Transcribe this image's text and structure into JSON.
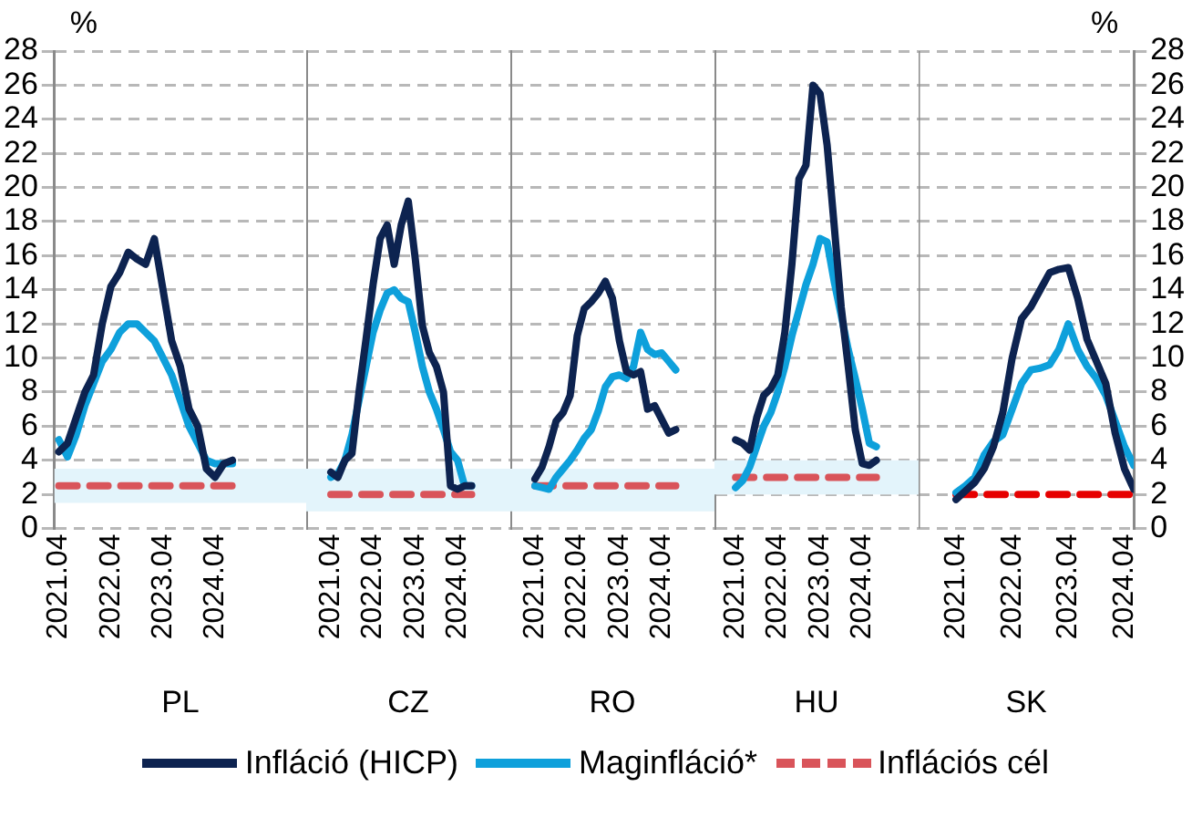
{
  "chart_data": [
    {
      "type": "line",
      "ylabel": "%",
      "xlabel": "PL",
      "legend": "bottom",
      "marker": "none",
      "grid": "y",
      "xlim": [
        "2021-03",
        "2026-01"
      ],
      "ylim": [
        0,
        28
      ],
      "yticks": [
        0,
        2,
        4,
        6,
        8,
        10,
        12,
        14,
        16,
        18,
        20,
        22,
        24,
        26,
        28
      ],
      "xticks": [
        {
          "value": "2021-04",
          "label": "2021.04"
        },
        {
          "value": "2022-04",
          "label": "2022.04"
        },
        {
          "value": "2023-04",
          "label": "2023.04"
        },
        {
          "value": "2024-04",
          "label": "2024.04"
        }
      ],
      "x": [
        "2021-04",
        "2021-06",
        "2021-08",
        "2021-10",
        "2021-12",
        "2022-02",
        "2022-04",
        "2022-06",
        "2022-08",
        "2022-10",
        "2022-12",
        "2023-02",
        "2023-04",
        "2023-06",
        "2023-08",
        "2023-10",
        "2023-12",
        "2024-02",
        "2024-04",
        "2024-06",
        "2024-08"
      ],
      "bands": [
        {
          "axis": "y",
          "from": 1.5,
          "to": 3.5,
          "color": "#e3f4fb"
        }
      ],
      "series": [
        {
          "name": "Infláció (HICP)",
          "color": "#0d2350",
          "values": [
            4.5,
            5.0,
            6.5,
            8.0,
            9.0,
            12.0,
            14.2,
            15.0,
            16.2,
            15.8,
            15.5,
            17.0,
            14.0,
            11.0,
            9.5,
            7.0,
            6.0,
            3.5,
            3.0,
            3.8,
            4.0
          ]
        },
        {
          "name": "Maginfláció*",
          "color": "#0ea0db",
          "values": [
            5.2,
            4.2,
            5.5,
            7.2,
            8.5,
            9.8,
            10.5,
            11.5,
            12.0,
            12.0,
            11.5,
            11.0,
            10.0,
            9.0,
            7.5,
            6.0,
            5.0,
            4.0,
            3.8,
            3.8,
            3.8
          ]
        },
        {
          "name": "Inflációs cél",
          "color": "#d9545a",
          "line_style": "dashed",
          "values": [
            2.5,
            2.5,
            2.5,
            2.5,
            2.5,
            2.5,
            2.5,
            2.5,
            2.5,
            2.5,
            2.5,
            2.5,
            2.5,
            2.5,
            2.5,
            2.5,
            2.5,
            2.5,
            2.5,
            2.5,
            2.5
          ]
        }
      ]
    },
    {
      "type": "line",
      "xlabel": "CZ",
      "marker": "none",
      "grid": "y",
      "tick_labels": "x",
      "xlim": [
        "2020-09",
        "2025-07"
      ],
      "ylim": [
        0,
        28
      ],
      "yticks": [
        0,
        2,
        4,
        6,
        8,
        10,
        12,
        14,
        16,
        18,
        20,
        22,
        24,
        26,
        28
      ],
      "xticks": [
        {
          "value": "2021-04",
          "label": "2021.04"
        },
        {
          "value": "2022-04",
          "label": "2022.04"
        },
        {
          "value": "2023-04",
          "label": "2023.04"
        },
        {
          "value": "2024-04",
          "label": "2024.04"
        }
      ],
      "x": [
        "2021-04",
        "2021-06",
        "2021-08",
        "2021-10",
        "2021-12",
        "2022-02",
        "2022-04",
        "2022-06",
        "2022-08",
        "2022-10",
        "2022-12",
        "2023-02",
        "2023-04",
        "2023-06",
        "2023-08",
        "2023-10",
        "2023-12",
        "2024-02",
        "2024-04",
        "2024-06",
        "2024-08"
      ],
      "bands": [
        {
          "axis": "y",
          "from": 1,
          "to": 3.5,
          "color": "#e3f4fb"
        }
      ],
      "series": [
        {
          "color": "#0d2350",
          "values": [
            3.3,
            3.0,
            4.0,
            4.4,
            8.0,
            11.1,
            14.3,
            17.0,
            17.8,
            15.5,
            17.8,
            19.2,
            15.8,
            11.9,
            10.3,
            9.5,
            8.0,
            2.5,
            2.3,
            2.5,
            2.5
          ]
        },
        {
          "color": "#0ea0db",
          "values": [
            3.0,
            3.2,
            4.0,
            5.5,
            7.5,
            9.5,
            11.5,
            12.8,
            13.8,
            14.0,
            13.5,
            13.3,
            11.5,
            9.5,
            8.0,
            7.0,
            5.8,
            4.5,
            4.0,
            2.5,
            2.5
          ]
        },
        {
          "color": "#d9545a",
          "line_style": "dashed",
          "values": [
            2,
            2,
            2,
            2,
            2,
            2,
            2,
            2,
            2,
            2,
            2,
            2,
            2,
            2,
            2,
            2,
            2,
            2,
            2,
            2,
            2
          ]
        }
      ]
    },
    {
      "type": "line",
      "xlabel": "RO",
      "marker": "none",
      "grid": "y",
      "tick_labels": "x",
      "xlim": [
        "2020-09",
        "2025-07"
      ],
      "ylim": [
        0,
        28
      ],
      "yticks": [
        0,
        2,
        4,
        6,
        8,
        10,
        12,
        14,
        16,
        18,
        20,
        22,
        24,
        26,
        28
      ],
      "xticks": [
        {
          "value": "2021-04",
          "label": "2021.04"
        },
        {
          "value": "2022-04",
          "label": "2022.04"
        },
        {
          "value": "2023-04",
          "label": "2023.04"
        },
        {
          "value": "2024-04",
          "label": "2024.04"
        }
      ],
      "x": [
        "2021-04",
        "2021-06",
        "2021-08",
        "2021-10",
        "2021-12",
        "2022-02",
        "2022-04",
        "2022-06",
        "2022-08",
        "2022-10",
        "2022-12",
        "2023-02",
        "2023-04",
        "2023-06",
        "2023-08",
        "2023-10",
        "2023-12",
        "2024-02",
        "2024-04",
        "2024-06",
        "2024-08"
      ],
      "bands": [
        {
          "axis": "y",
          "from": 1,
          "to": 3.5,
          "color": "#e3f4fb"
        }
      ],
      "series": [
        {
          "color": "#0d2350",
          "values": [
            2.9,
            3.6,
            4.8,
            6.3,
            6.8,
            7.8,
            11.3,
            12.9,
            13.3,
            13.8,
            14.5,
            13.5,
            11.0,
            9.2,
            9.0,
            9.2,
            7.0,
            7.2,
            6.4,
            5.6,
            5.8
          ]
        },
        {
          "color": "#0ea0db",
          "values": [
            2.5,
            2.4,
            2.3,
            3.0,
            3.5,
            4.0,
            4.6,
            5.3,
            5.8,
            6.9,
            8.3,
            8.9,
            9.0,
            8.8,
            9.5,
            11.5,
            10.5,
            10.2,
            10.3,
            9.8,
            9.3
          ]
        },
        {
          "color": "#d9545a",
          "line_style": "dashed",
          "values": [
            2.5,
            2.5,
            2.5,
            2.5,
            2.5,
            2.5,
            2.5,
            2.5,
            2.5,
            2.5,
            2.5,
            2.5,
            2.5,
            2.5,
            2.5,
            2.5,
            2.5,
            2.5,
            2.5,
            2.5,
            2.5
          ]
        }
      ]
    },
    {
      "type": "line",
      "xlabel": "HU",
      "marker": "none",
      "grid": "y",
      "tick_labels": "x",
      "xlim": [
        "2020-10",
        "2025-08"
      ],
      "ylim": [
        0,
        28
      ],
      "yticks": [
        0,
        2,
        4,
        6,
        8,
        10,
        12,
        14,
        16,
        18,
        20,
        22,
        24,
        26,
        28
      ],
      "xticks": [
        {
          "value": "2021-04",
          "label": "2021.04"
        },
        {
          "value": "2022-04",
          "label": "2022.04"
        },
        {
          "value": "2023-04",
          "label": "2023.04"
        },
        {
          "value": "2024-04",
          "label": "2024.04"
        }
      ],
      "x": [
        "2021-04",
        "2021-06",
        "2021-08",
        "2021-10",
        "2021-12",
        "2022-02",
        "2022-04",
        "2022-06",
        "2022-08",
        "2022-10",
        "2022-12",
        "2023-02",
        "2023-04",
        "2023-06",
        "2023-08",
        "2023-10",
        "2023-12",
        "2024-02",
        "2024-04",
        "2024-06",
        "2024-08"
      ],
      "bands": [
        {
          "axis": "y",
          "from": 2,
          "to": 4,
          "color": "#e3f4fb"
        }
      ],
      "series": [
        {
          "color": "#0d2350",
          "values": [
            5.2,
            5.0,
            4.6,
            6.5,
            7.8,
            8.2,
            9.0,
            11.5,
            15.5,
            20.5,
            21.3,
            26.0,
            25.5,
            22.5,
            17.8,
            13.0,
            9.5,
            5.8,
            3.8,
            3.7,
            4.0
          ]
        },
        {
          "color": "#0ea0db",
          "values": [
            2.4,
            2.8,
            3.6,
            4.8,
            6.0,
            6.8,
            8.0,
            9.5,
            11.3,
            12.8,
            14.3,
            15.5,
            17.0,
            16.8,
            14.5,
            12.5,
            10.5,
            8.8,
            7.0,
            5.0,
            4.8
          ]
        },
        {
          "color": "#d9545a",
          "line_style": "dashed",
          "values": [
            3,
            3,
            3,
            3,
            3,
            3,
            3,
            3,
            3,
            3,
            3,
            3,
            3,
            3,
            3,
            3,
            3,
            3,
            3,
            3,
            3
          ]
        }
      ]
    },
    {
      "type": "line",
      "xlabel": "SK",
      "y2label": "%",
      "marker": "none",
      "grid": "y",
      "xlim": [
        "2020-08",
        "2024-06"
      ],
      "y2lim": [
        0,
        28
      ],
      "y2ticks": [
        0,
        2,
        4,
        6,
        8,
        10,
        12,
        14,
        16,
        18,
        20,
        22,
        24,
        26,
        28
      ],
      "xticks": [
        {
          "value": "2021-04",
          "label": "2021.04"
        },
        {
          "value": "2022-04",
          "label": "2022.04"
        },
        {
          "value": "2023-04",
          "label": "2023.04"
        },
        {
          "value": "2024-04",
          "label": "2024.04"
        }
      ],
      "x": [
        "2021-04",
        "2021-06",
        "2021-08",
        "2021-10",
        "2021-12",
        "2022-02",
        "2022-04",
        "2022-06",
        "2022-08",
        "2022-10",
        "2022-12",
        "2023-02",
        "2023-04",
        "2023-06",
        "2023-08",
        "2023-10",
        "2023-12",
        "2024-02",
        "2024-04",
        "2024-06"
      ],
      "series": [
        {
          "axis": "y2",
          "color": "#0d2350",
          "values": [
            1.7,
            2.2,
            2.7,
            3.5,
            4.8,
            6.8,
            10.0,
            12.3,
            13.0,
            14.0,
            15.0,
            15.2,
            15.3,
            13.5,
            11.1,
            9.8,
            8.5,
            5.6,
            3.5,
            2.3
          ]
        },
        {
          "axis": "y2",
          "color": "#0ea0db",
          "values": [
            2.1,
            2.5,
            3.0,
            4.3,
            5.1,
            5.5,
            7.0,
            8.5,
            9.3,
            9.4,
            9.6,
            10.5,
            12.0,
            10.5,
            9.5,
            8.8,
            7.8,
            6.3,
            4.8,
            3.7
          ]
        },
        {
          "axis": "y2",
          "color": "#e60000",
          "line_style": "dashed",
          "values": [
            2,
            2,
            2,
            2,
            2,
            2,
            2,
            2,
            2,
            2,
            2,
            2,
            2,
            2,
            2,
            2,
            2,
            2,
            2,
            2
          ]
        }
      ]
    }
  ]
}
